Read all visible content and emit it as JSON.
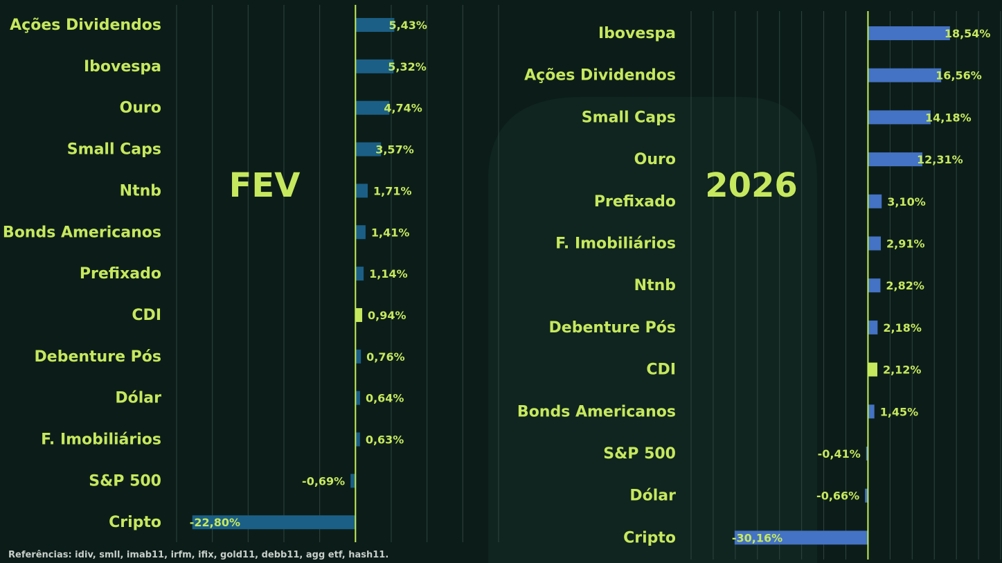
{
  "chart_data": [
    {
      "type": "bar",
      "orientation": "horizontal",
      "big_label": "FEV",
      "categories": [
        "Ações Dividendos",
        "Ibovespa",
        "Ouro",
        "Small Caps",
        "Ntnb",
        "Bonds Americanos",
        "Prefixado",
        "CDI",
        "Debenture Pós",
        "Dólar",
        "F. Imobiliários",
        "S&P 500",
        "Cripto"
      ],
      "values": [
        5.43,
        5.32,
        4.74,
        3.57,
        1.71,
        1.41,
        1.14,
        0.94,
        0.76,
        0.64,
        0.63,
        -0.69,
        -22.8
      ],
      "value_labels": [
        "5,43%",
        "5,32%",
        "4,74%",
        "3,57%",
        "1,71%",
        "1,41%",
        "1,14%",
        "0,94%",
        "0,76%",
        "0,64%",
        "0,63%",
        "-0,69%",
        "-22,80%"
      ],
      "bar_color": "#1b5f86",
      "highlight_category": "CDI",
      "highlight_color": "#c6e85e",
      "xlim": [
        -25,
        20
      ],
      "grid": true
    },
    {
      "type": "bar",
      "orientation": "horizontal",
      "big_label": "2026",
      "categories": [
        "Ibovespa",
        "Ações Dividendos",
        "Small Caps",
        "Ouro",
        "Prefixado",
        "F. Imobiliários",
        "Ntnb",
        "Debenture Pós",
        "CDI",
        "Bonds Americanos",
        "S&P 500",
        "Dólar",
        "Cripto"
      ],
      "values": [
        18.54,
        16.56,
        14.18,
        12.31,
        3.1,
        2.91,
        2.82,
        2.18,
        2.12,
        1.45,
        -0.41,
        -0.66,
        -30.16
      ],
      "value_labels": [
        "18,54%",
        "16,56%",
        "14,18%",
        "12,31%",
        "3,10%",
        "2,91%",
        "2,82%",
        "2,18%",
        "2,12%",
        "1,45%",
        "-0,41%",
        "-0,66%",
        "-30,16%"
      ],
      "bar_color": "#4472c4",
      "highlight_category": "CDI",
      "highlight_color": "#c6e85e",
      "xlim": [
        -40,
        30
      ],
      "grid": true
    }
  ],
  "footer": {
    "references": "Referências: idiv, smll, imab11, irfm, ifix, gold11, debb11, agg etf, hash11."
  }
}
